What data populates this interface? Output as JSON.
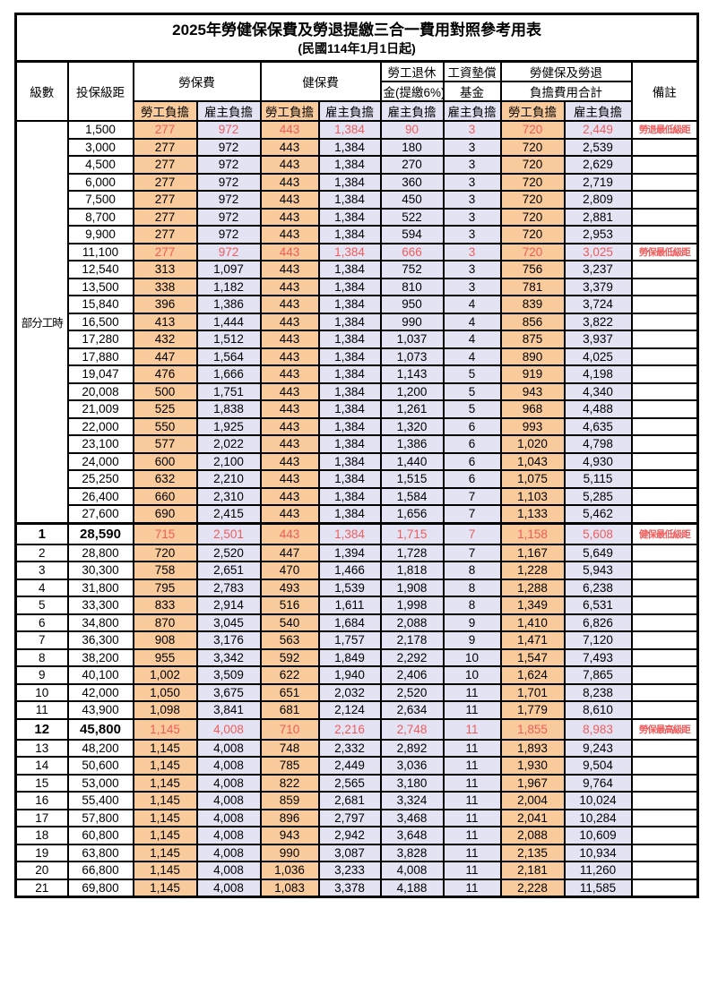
{
  "title": "2025年勞健保保費及勞退提繳三合一費用對照參考用表",
  "subtitle": "(民國114年1月1日起)",
  "colors": {
    "employee_column_bg": "#F9CB9C",
    "employer_column_bg": "#E3E3F3",
    "highlight_red": "#F05C5C",
    "border": "#000000"
  },
  "header": {
    "level": "級數",
    "bracket": "投保級距",
    "labor_insurance": "勞保費",
    "health_insurance": "健保費",
    "pension_line1": "勞工退休",
    "pension_line2": "金(提繳6%)",
    "wage_fund_line1": "工資墊償",
    "wage_fund_line2": "基金",
    "total_line1": "勞健保及勞退",
    "total_line2": "負擔費用合計",
    "remark": "備註",
    "employee_share": "勞工負擔",
    "employer_share": "雇主負擔"
  },
  "part_time_label": "部分工時",
  "part_time_rowspan": 23,
  "rows": [
    {
      "part_time_anchor": true,
      "bracket": "1,500",
      "values": [
        "277",
        "972",
        "443",
        "1,384",
        "90",
        "3",
        "720",
        "2,449"
      ],
      "remark": "勞退最低級距",
      "red": true
    },
    {
      "bracket": "3,000",
      "values": [
        "277",
        "972",
        "443",
        "1,384",
        "180",
        "3",
        "720",
        "2,539"
      ]
    },
    {
      "bracket": "4,500",
      "values": [
        "277",
        "972",
        "443",
        "1,384",
        "270",
        "3",
        "720",
        "2,629"
      ]
    },
    {
      "bracket": "6,000",
      "values": [
        "277",
        "972",
        "443",
        "1,384",
        "360",
        "3",
        "720",
        "2,719"
      ]
    },
    {
      "bracket": "7,500",
      "values": [
        "277",
        "972",
        "443",
        "1,384",
        "450",
        "3",
        "720",
        "2,809"
      ]
    },
    {
      "bracket": "8,700",
      "values": [
        "277",
        "972",
        "443",
        "1,384",
        "522",
        "3",
        "720",
        "2,881"
      ]
    },
    {
      "bracket": "9,900",
      "values": [
        "277",
        "972",
        "443",
        "1,384",
        "594",
        "3",
        "720",
        "2,953"
      ]
    },
    {
      "bracket": "11,100",
      "values": [
        "277",
        "972",
        "443",
        "1,384",
        "666",
        "3",
        "720",
        "3,025"
      ],
      "remark": "勞保最低級距",
      "red": true
    },
    {
      "bracket": "12,540",
      "values": [
        "313",
        "1,097",
        "443",
        "1,384",
        "752",
        "3",
        "756",
        "3,237"
      ]
    },
    {
      "bracket": "13,500",
      "values": [
        "338",
        "1,182",
        "443",
        "1,384",
        "810",
        "3",
        "781",
        "3,379"
      ]
    },
    {
      "bracket": "15,840",
      "values": [
        "396",
        "1,386",
        "443",
        "1,384",
        "950",
        "4",
        "839",
        "3,724"
      ]
    },
    {
      "bracket": "16,500",
      "values": [
        "413",
        "1,444",
        "443",
        "1,384",
        "990",
        "4",
        "856",
        "3,822"
      ]
    },
    {
      "bracket": "17,280",
      "values": [
        "432",
        "1,512",
        "443",
        "1,384",
        "1,037",
        "4",
        "875",
        "3,937"
      ]
    },
    {
      "bracket": "17,880",
      "values": [
        "447",
        "1,564",
        "443",
        "1,384",
        "1,073",
        "4",
        "890",
        "4,025"
      ]
    },
    {
      "bracket": "19,047",
      "values": [
        "476",
        "1,666",
        "443",
        "1,384",
        "1,143",
        "5",
        "919",
        "4,198"
      ]
    },
    {
      "bracket": "20,008",
      "values": [
        "500",
        "1,751",
        "443",
        "1,384",
        "1,200",
        "5",
        "943",
        "4,340"
      ]
    },
    {
      "bracket": "21,009",
      "values": [
        "525",
        "1,838",
        "443",
        "1,384",
        "1,261",
        "5",
        "968",
        "4,488"
      ]
    },
    {
      "bracket": "22,000",
      "values": [
        "550",
        "1,925",
        "443",
        "1,384",
        "1,320",
        "6",
        "993",
        "4,635"
      ]
    },
    {
      "bracket": "23,100",
      "values": [
        "577",
        "2,022",
        "443",
        "1,384",
        "1,386",
        "6",
        "1,020",
        "4,798"
      ]
    },
    {
      "bracket": "24,000",
      "values": [
        "600",
        "2,100",
        "443",
        "1,384",
        "1,440",
        "6",
        "1,043",
        "4,930"
      ]
    },
    {
      "bracket": "25,250",
      "values": [
        "632",
        "2,210",
        "443",
        "1,384",
        "1,515",
        "6",
        "1,075",
        "5,115"
      ]
    },
    {
      "bracket": "26,400",
      "values": [
        "660",
        "2,310",
        "443",
        "1,384",
        "1,584",
        "7",
        "1,103",
        "5,285"
      ]
    },
    {
      "bracket": "27,600",
      "values": [
        "690",
        "2,415",
        "443",
        "1,384",
        "1,656",
        "7",
        "1,133",
        "5,462"
      ]
    },
    {
      "level": "1",
      "bracket": "28,590",
      "values": [
        "715",
        "2,501",
        "443",
        "1,384",
        "1,715",
        "7",
        "1,158",
        "5,608"
      ],
      "remark": "健保最低級距",
      "red": true,
      "emphasis": true,
      "thick_top": true
    },
    {
      "level": "2",
      "bracket": "28,800",
      "values": [
        "720",
        "2,520",
        "447",
        "1,394",
        "1,728",
        "7",
        "1,167",
        "5,649"
      ]
    },
    {
      "level": "3",
      "bracket": "30,300",
      "values": [
        "758",
        "2,651",
        "470",
        "1,466",
        "1,818",
        "8",
        "1,228",
        "5,943"
      ]
    },
    {
      "level": "4",
      "bracket": "31,800",
      "values": [
        "795",
        "2,783",
        "493",
        "1,539",
        "1,908",
        "8",
        "1,288",
        "6,238"
      ]
    },
    {
      "level": "5",
      "bracket": "33,300",
      "values": [
        "833",
        "2,914",
        "516",
        "1,611",
        "1,998",
        "8",
        "1,349",
        "6,531"
      ]
    },
    {
      "level": "6",
      "bracket": "34,800",
      "values": [
        "870",
        "3,045",
        "540",
        "1,684",
        "2,088",
        "9",
        "1,410",
        "6,826"
      ]
    },
    {
      "level": "7",
      "bracket": "36,300",
      "values": [
        "908",
        "3,176",
        "563",
        "1,757",
        "2,178",
        "9",
        "1,471",
        "7,120"
      ]
    },
    {
      "level": "8",
      "bracket": "38,200",
      "values": [
        "955",
        "3,342",
        "592",
        "1,849",
        "2,292",
        "10",
        "1,547",
        "7,493"
      ]
    },
    {
      "level": "9",
      "bracket": "40,100",
      "values": [
        "1,002",
        "3,509",
        "622",
        "1,940",
        "2,406",
        "10",
        "1,624",
        "7,865"
      ]
    },
    {
      "level": "10",
      "bracket": "42,000",
      "values": [
        "1,050",
        "3,675",
        "651",
        "2,032",
        "2,520",
        "11",
        "1,701",
        "8,238"
      ]
    },
    {
      "level": "11",
      "bracket": "43,900",
      "values": [
        "1,098",
        "3,841",
        "681",
        "2,124",
        "2,634",
        "11",
        "1,779",
        "8,610"
      ]
    },
    {
      "level": "12",
      "bracket": "45,800",
      "values": [
        "1,145",
        "4,008",
        "710",
        "2,216",
        "2,748",
        "11",
        "1,855",
        "8,983"
      ],
      "remark": "勞保最高級距",
      "red": true,
      "emphasis": true
    },
    {
      "level": "13",
      "bracket": "48,200",
      "values": [
        "1,145",
        "4,008",
        "748",
        "2,332",
        "2,892",
        "11",
        "1,893",
        "9,243"
      ]
    },
    {
      "level": "14",
      "bracket": "50,600",
      "values": [
        "1,145",
        "4,008",
        "785",
        "2,449",
        "3,036",
        "11",
        "1,930",
        "9,504"
      ]
    },
    {
      "level": "15",
      "bracket": "53,000",
      "values": [
        "1,145",
        "4,008",
        "822",
        "2,565",
        "3,180",
        "11",
        "1,967",
        "9,764"
      ]
    },
    {
      "level": "16",
      "bracket": "55,400",
      "values": [
        "1,145",
        "4,008",
        "859",
        "2,681",
        "3,324",
        "11",
        "2,004",
        "10,024"
      ]
    },
    {
      "level": "17",
      "bracket": "57,800",
      "values": [
        "1,145",
        "4,008",
        "896",
        "2,797",
        "3,468",
        "11",
        "2,041",
        "10,284"
      ]
    },
    {
      "level": "18",
      "bracket": "60,800",
      "values": [
        "1,145",
        "4,008",
        "943",
        "2,942",
        "3,648",
        "11",
        "2,088",
        "10,609"
      ]
    },
    {
      "level": "19",
      "bracket": "63,800",
      "values": [
        "1,145",
        "4,008",
        "990",
        "3,087",
        "3,828",
        "11",
        "2,135",
        "10,934"
      ]
    },
    {
      "level": "20",
      "bracket": "66,800",
      "values": [
        "1,145",
        "4,008",
        "1,036",
        "3,233",
        "4,008",
        "11",
        "2,181",
        "11,260"
      ]
    },
    {
      "level": "21",
      "bracket": "69,800",
      "values": [
        "1,145",
        "4,008",
        "1,083",
        "3,378",
        "4,188",
        "11",
        "2,228",
        "11,585"
      ]
    }
  ]
}
